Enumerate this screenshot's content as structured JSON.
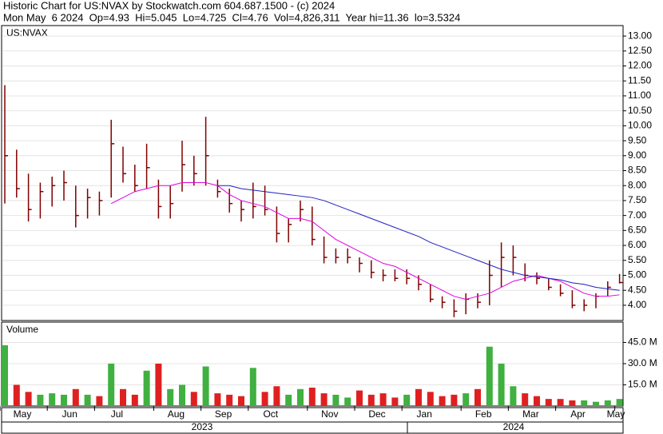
{
  "header": {
    "line1": "Historic Chart for US:NVAX by Stockwatch.com 604.687.1500 - (c) 2024",
    "line2": "Mon May  6 2024  Op=4.93  Hi=5.045  Lo=4.725  Cl=4.76  Vol=4,826,311  Year hi=11.36  lo=3.5324"
  },
  "chart_data": [
    {
      "type": "ohlc",
      "label": "US:NVAX",
      "color": "#800000",
      "grid": true,
      "ylim": [
        3.49,
        13.35
      ],
      "yticks": [
        {
          "value": 4,
          "label": "4.00"
        },
        {
          "value": 4.5,
          "label": "4.50"
        },
        {
          "value": 5,
          "label": "5.00"
        },
        {
          "value": 5.5,
          "label": "5.50"
        },
        {
          "value": 6,
          "label": "6.00"
        },
        {
          "value": 6.5,
          "label": "6.50"
        },
        {
          "value": 7,
          "label": "7.00"
        },
        {
          "value": 7.5,
          "label": "7.50"
        },
        {
          "value": 8,
          "label": "8.00"
        },
        {
          "value": 8.5,
          "label": "8.50"
        },
        {
          "value": 9,
          "label": "9.00"
        },
        {
          "value": 9.5,
          "label": "9.50"
        },
        {
          "value": 10,
          "label": "10.00"
        },
        {
          "value": 10.5,
          "label": "10.50"
        },
        {
          "value": 11,
          "label": "11.00"
        },
        {
          "value": 11.5,
          "label": "11.50"
        },
        {
          "value": 12,
          "label": "12.00"
        },
        {
          "value": 12.5,
          "label": "12.50"
        },
        {
          "value": 13,
          "label": "13.00"
        }
      ],
      "high": [
        11.36,
        9.2,
        8.4,
        8.1,
        8.3,
        8.5,
        8.0,
        7.9,
        7.8,
        10.2,
        9.3,
        8.7,
        9.4,
        8.2,
        8.0,
        9.5,
        9.0,
        10.3,
        8.2,
        7.9,
        7.5,
        8.1,
        8.0,
        7.3,
        6.9,
        7.5,
        7.3,
        6.3,
        5.9,
        5.9,
        5.6,
        5.5,
        5.2,
        5.2,
        5.2,
        5.0,
        4.7,
        4.3,
        4.2,
        4.4,
        4.4,
        5.5,
        6.1,
        6.0,
        5.4,
        5.1,
        4.9,
        4.7,
        4.5,
        4.2,
        4.4,
        4.8,
        5.045
      ],
      "low": [
        7.4,
        7.6,
        6.8,
        6.9,
        7.3,
        7.5,
        6.6,
        6.9,
        7.0,
        7.6,
        8.1,
        7.8,
        7.9,
        6.9,
        6.9,
        7.8,
        8.0,
        8.0,
        7.6,
        7.1,
        6.8,
        6.9,
        7.0,
        6.1,
        6.1,
        6.8,
        6.0,
        5.4,
        5.4,
        5.4,
        5.1,
        4.9,
        4.8,
        4.8,
        4.7,
        4.5,
        4.1,
        3.9,
        3.6,
        3.7,
        3.9,
        4.0,
        4.6,
        5.0,
        4.8,
        4.7,
        4.5,
        4.3,
        3.9,
        3.8,
        3.9,
        4.3,
        4.725
      ],
      "close": [
        9.0,
        7.9,
        7.2,
        7.8,
        8.0,
        8.1,
        7.0,
        7.6,
        7.5,
        9.4,
        8.4,
        8.0,
        8.6,
        7.3,
        7.4,
        8.7,
        8.4,
        9.0,
        7.8,
        7.4,
        7.2,
        7.3,
        7.2,
        6.4,
        6.7,
        7.2,
        6.2,
        5.6,
        5.6,
        5.6,
        5.4,
        5.1,
        5.0,
        4.9,
        4.9,
        4.7,
        4.2,
        4.1,
        3.8,
        4.2,
        4.1,
        5.0,
        5.6,
        5.6,
        5.0,
        4.9,
        4.6,
        4.4,
        4.0,
        4.0,
        4.3,
        4.6,
        4.76
      ],
      "averages": [
        {
          "color": "#e000e0",
          "values": [
            null,
            null,
            null,
            null,
            null,
            null,
            null,
            null,
            null,
            7.4,
            7.6,
            7.8,
            7.9,
            8.0,
            8.0,
            8.1,
            8.1,
            8.1,
            8.0,
            7.7,
            7.5,
            7.4,
            7.3,
            7.1,
            6.9,
            6.9,
            6.8,
            6.5,
            6.2,
            6.0,
            5.8,
            5.6,
            5.4,
            5.3,
            5.1,
            4.9,
            4.7,
            4.5,
            4.3,
            4.2,
            4.3,
            4.4,
            4.6,
            4.8,
            4.9,
            5.0,
            4.9,
            4.8,
            4.6,
            4.4,
            4.3,
            4.3,
            4.35
          ]
        },
        {
          "color": "#2020c0",
          "values": [
            null,
            null,
            null,
            null,
            null,
            null,
            null,
            null,
            null,
            null,
            null,
            null,
            null,
            null,
            null,
            null,
            null,
            null,
            8.0,
            8.0,
            7.9,
            7.85,
            7.8,
            7.75,
            7.7,
            7.65,
            7.6,
            7.5,
            7.35,
            7.2,
            7.05,
            6.9,
            6.75,
            6.6,
            6.45,
            6.3,
            6.1,
            5.95,
            5.8,
            5.65,
            5.5,
            5.35,
            5.2,
            5.1,
            5.0,
            4.95,
            4.9,
            4.85,
            4.75,
            4.7,
            4.6,
            4.55,
            4.5
          ]
        }
      ]
    },
    {
      "type": "bar",
      "label": "Volume",
      "up_color": "#40b040",
      "down_color": "#e02020",
      "grid": true,
      "ylim": [
        0,
        59.4
      ],
      "yticks": [
        {
          "value": 15,
          "label": "15.0 M"
        },
        {
          "value": 30,
          "label": "30.0 M"
        },
        {
          "value": 45,
          "label": "45.0 M"
        }
      ],
      "categories": [
        "May",
        null,
        null,
        null,
        "Jun",
        null,
        null,
        null,
        "Jul",
        null,
        null,
        null,
        null,
        "Aug",
        null,
        null,
        null,
        "Sep",
        null,
        null,
        null,
        "Oct",
        null,
        null,
        null,
        null,
        "Nov",
        null,
        null,
        null,
        "Dec",
        null,
        null,
        null,
        "Jan",
        null,
        null,
        null,
        null,
        "Feb",
        null,
        null,
        null,
        "Mar",
        null,
        null,
        null,
        "Apr",
        null,
        null,
        null,
        null,
        "May"
      ],
      "values": [
        43,
        15,
        10,
        8,
        9,
        8,
        12,
        8,
        7,
        30,
        12,
        8,
        25,
        30,
        12,
        15,
        10,
        28,
        9,
        8,
        7,
        27,
        10,
        14,
        8,
        12,
        13,
        9,
        8,
        6,
        11,
        8,
        9,
        6,
        8,
        12,
        10,
        7,
        8,
        9,
        12,
        42,
        30,
        14,
        9,
        7,
        5,
        5,
        4,
        4,
        3,
        4,
        5
      ],
      "years": [
        "2023",
        "2024"
      ]
    }
  ]
}
